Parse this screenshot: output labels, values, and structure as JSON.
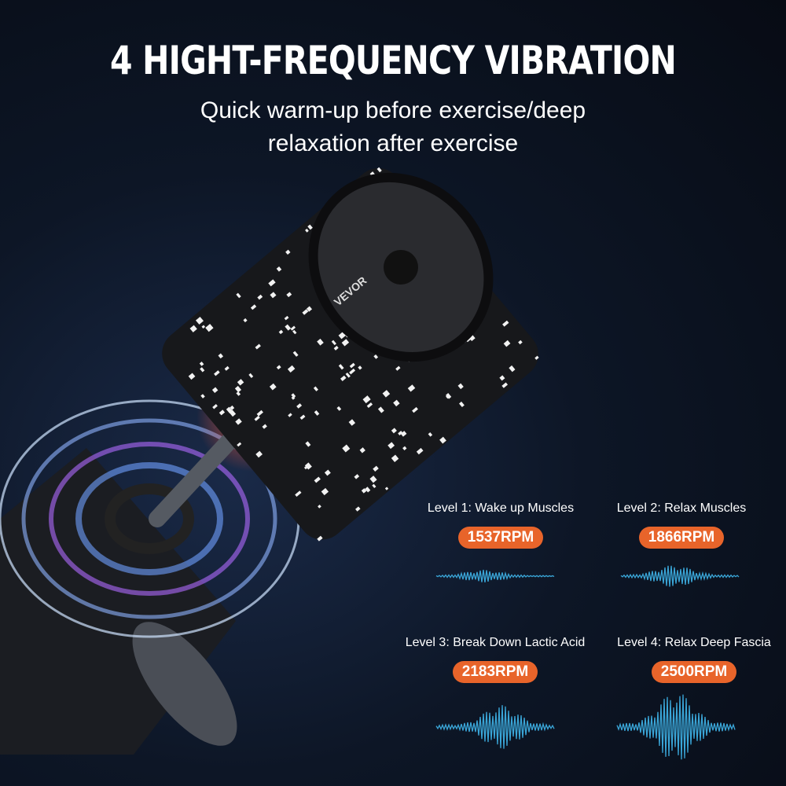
{
  "title": "4 HIGHT-FREQUENCY VIBRATION",
  "subtitle": [
    "Quick warm-up before exercise/deep",
    "relaxation after exercise"
  ],
  "brand_logo": "VEVOR",
  "accent_color": "#e8642a",
  "wave_color": "#3aa6d8",
  "levels": [
    {
      "label": "Level 1: Wake up Muscles",
      "rpm": "1537RPM"
    },
    {
      "label": "Level 2: Relax Muscles",
      "rpm": "1866RPM"
    },
    {
      "label": "Level 3: Break Down Lactic Acid",
      "rpm": "2183RPM"
    },
    {
      "label": "Level 4: Relax Deep Fascia",
      "rpm": "2500RPM"
    }
  ]
}
